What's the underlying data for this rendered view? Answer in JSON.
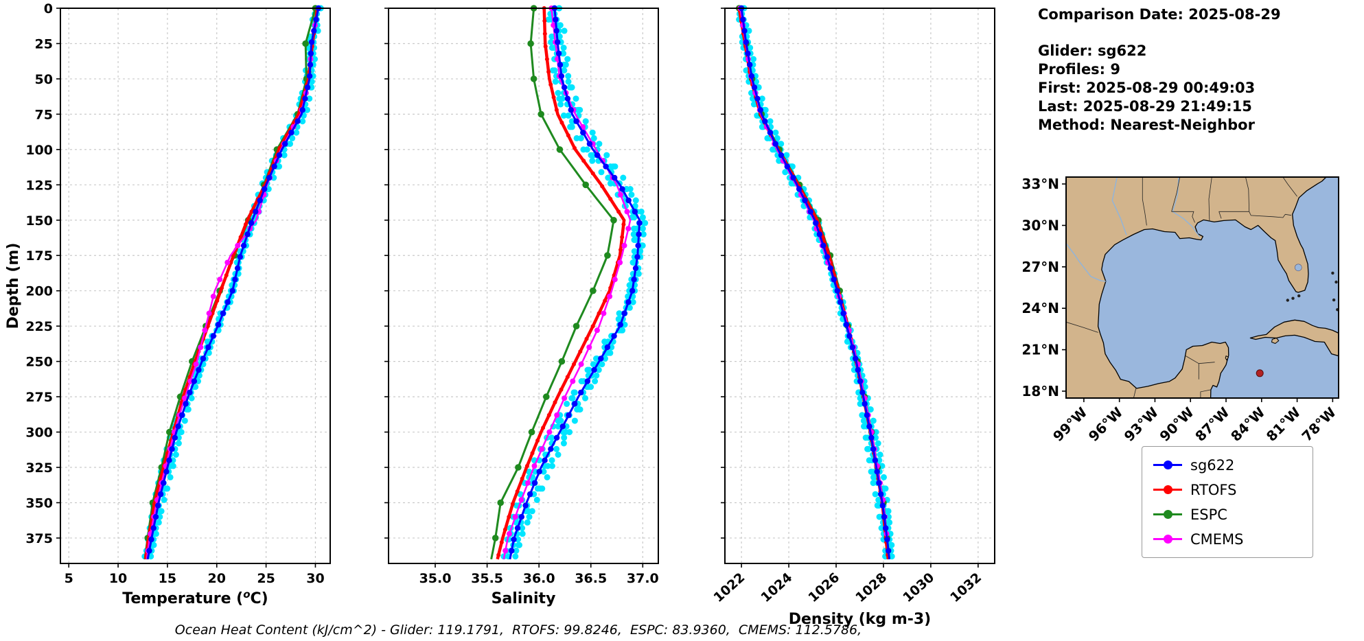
{
  "info_panel": {
    "comparison_date": "Comparison Date: 2025-08-29",
    "glider": "Glider: sg622",
    "profiles": "Profiles: 9",
    "first": "First: 2025-08-29 00:49:03",
    "last": "Last: 2025-08-29 21:49:15",
    "method": "Method: Nearest-Neighbor"
  },
  "footnote": "Ocean Heat Content (kJ/cm^2) - Glider: 119.1791,  RTOFS: 99.8246,  ESPC: 83.9360,  CMEMS: 112.5786,",
  "legend": {
    "entries": [
      {
        "label": "sg622",
        "color": "#0000ff"
      },
      {
        "label": "RTOFS",
        "color": "#ff0000"
      },
      {
        "label": "ESPC",
        "color": "#1f8a1f"
      },
      {
        "label": "CMEMS",
        "color": "#ff00ff"
      }
    ]
  },
  "map": {
    "lat_tick_labels": [
      "33°N",
      "30°N",
      "27°N",
      "24°N",
      "21°N",
      "18°N"
    ],
    "lat_tick_values": [
      33,
      30,
      27,
      24,
      21,
      18
    ],
    "lon_tick_labels": [
      "99°W",
      "96°W",
      "93°W",
      "90°W",
      "87°W",
      "84°W",
      "81°W",
      "78°W"
    ],
    "lon_tick_values": [
      -99,
      -96,
      -93,
      -90,
      -87,
      -84,
      -81,
      -78
    ],
    "extent": {
      "lon_min": -100.5,
      "lon_max": -77.5,
      "lat_min": 17.5,
      "lat_max": 33.5
    },
    "glider_marker": {
      "lon": -84.15,
      "lat": 19.3,
      "color": "#b22222"
    },
    "colors": {
      "land": "#d2b48c",
      "ocean": "#9ab7dd",
      "coast": "#000000"
    }
  },
  "chart_data": [
    {
      "type": "line",
      "name": "temperature",
      "xlabel": "Temperature (^oC)",
      "ylabel": "Depth (m)",
      "xlim": [
        4.15,
        31.5
      ],
      "ylim": [
        0,
        393
      ],
      "xticks": [
        5,
        10,
        15,
        20,
        25,
        30
      ],
      "xtick_labels": [
        "5",
        "10",
        "15",
        "20",
        "25",
        "30"
      ],
      "yticks": [
        0,
        25,
        50,
        75,
        100,
        125,
        150,
        175,
        200,
        225,
        250,
        275,
        300,
        325,
        350,
        375
      ],
      "depths": [
        0,
        25,
        50,
        75,
        100,
        125,
        150,
        175,
        200,
        225,
        250,
        275,
        300,
        325,
        350,
        375,
        390
      ],
      "series": [
        {
          "name": "sg622",
          "color": "#0000ff",
          "values": [
            30.3,
            29.6,
            29.4,
            28.6,
            26.6,
            25.0,
            23.6,
            22.4,
            21.6,
            20.1,
            18.5,
            17.1,
            15.9,
            15.0,
            14.1,
            13.4,
            13.0
          ]
        },
        {
          "name": "RTOFS",
          "color": "#ff0000",
          "values": [
            30.2,
            29.7,
            29.3,
            28.3,
            26.3,
            24.9,
            23.1,
            21.7,
            20.4,
            19.1,
            17.8,
            16.6,
            15.6,
            14.6,
            13.7,
            13.1,
            12.8
          ]
        },
        {
          "name": "ESPC",
          "color": "#1f8a1f",
          "values": [
            30.0,
            29.0,
            29.1,
            28.2,
            26.1,
            24.8,
            23.2,
            21.8,
            20.3,
            18.9,
            17.5,
            16.3,
            15.2,
            14.4,
            13.5,
            13.0,
            12.7
          ]
        },
        {
          "name": "CMEMS",
          "color": "#ff00ff",
          "values": [
            30.3,
            29.6,
            29.4,
            28.5,
            26.5,
            25.1,
            24.0,
            21.4,
            19.8,
            18.9,
            18.0,
            16.8,
            15.7,
            14.8,
            13.9,
            13.2,
            12.9
          ]
        }
      ],
      "glider_scatter": {
        "color": "#00e5ff",
        "spread": 0.55
      }
    },
    {
      "type": "line",
      "name": "salinity",
      "xlabel": "Salinity",
      "xlim": [
        34.55,
        37.15
      ],
      "ylim": [
        0,
        393
      ],
      "xticks": [
        35.0,
        35.5,
        36.0,
        36.5,
        37.0
      ],
      "xtick_labels": [
        "35.0",
        "35.5",
        "36.0",
        "36.5",
        "37.0"
      ],
      "yticks": [
        0,
        25,
        50,
        75,
        100,
        125,
        150,
        175,
        200,
        225,
        250,
        275,
        300,
        325,
        350,
        375
      ],
      "depths": [
        0,
        25,
        50,
        75,
        100,
        125,
        150,
        175,
        200,
        225,
        250,
        275,
        300,
        325,
        350,
        375,
        390
      ],
      "series": [
        {
          "name": "sg622",
          "color": "#0000ff",
          "values": [
            36.15,
            36.18,
            36.22,
            36.32,
            36.52,
            36.78,
            36.97,
            36.95,
            36.9,
            36.78,
            36.58,
            36.38,
            36.2,
            36.02,
            35.88,
            35.76,
            35.72
          ]
        },
        {
          "name": "RTOFS",
          "color": "#ff0000",
          "values": [
            36.05,
            36.06,
            36.1,
            36.18,
            36.35,
            36.6,
            36.82,
            36.78,
            36.68,
            36.52,
            36.35,
            36.18,
            36.02,
            35.88,
            35.75,
            35.65,
            35.6
          ]
        },
        {
          "name": "ESPC",
          "color": "#1f8a1f",
          "values": [
            35.95,
            35.92,
            35.95,
            36.02,
            36.2,
            36.45,
            36.72,
            36.66,
            36.52,
            36.36,
            36.22,
            36.07,
            35.93,
            35.8,
            35.63,
            35.58,
            35.54
          ]
        },
        {
          "name": "CMEMS",
          "color": "#ff00ff",
          "values": [
            36.12,
            36.16,
            36.2,
            36.35,
            36.55,
            36.75,
            36.88,
            36.8,
            36.7,
            36.58,
            36.42,
            36.25,
            36.1,
            35.95,
            35.82,
            35.7,
            35.66
          ]
        }
      ],
      "glider_scatter": {
        "color": "#00e5ff",
        "spread": 0.1
      }
    },
    {
      "type": "line",
      "name": "density",
      "xlabel": "Density (kg m-3)",
      "xlim": [
        1021.3,
        1032.7
      ],
      "ylim": [
        0,
        393
      ],
      "xticks": [
        1022,
        1024,
        1026,
        1028,
        1030,
        1032
      ],
      "xtick_labels": [
        "1022",
        "1024",
        "1026",
        "1028",
        "1030",
        "1032"
      ],
      "rotate_xticks": true,
      "yticks": [
        0,
        25,
        50,
        75,
        100,
        125,
        150,
        175,
        200,
        225,
        250,
        275,
        300,
        325,
        350,
        375
      ],
      "depths": [
        0,
        25,
        50,
        75,
        100,
        125,
        150,
        175,
        200,
        225,
        250,
        275,
        300,
        325,
        350,
        375,
        390
      ],
      "series": [
        {
          "name": "sg622",
          "color": "#0000ff",
          "values": [
            1022.0,
            1022.2,
            1022.45,
            1022.85,
            1023.55,
            1024.35,
            1025.1,
            1025.6,
            1026.05,
            1026.45,
            1026.85,
            1027.15,
            1027.45,
            1027.7,
            1027.95,
            1028.15,
            1028.25
          ]
        },
        {
          "name": "RTOFS",
          "color": "#ff0000",
          "values": [
            1021.9,
            1022.15,
            1022.4,
            1022.8,
            1023.55,
            1024.4,
            1025.2,
            1025.7,
            1026.1,
            1026.5,
            1026.85,
            1027.15,
            1027.45,
            1027.7,
            1027.95,
            1028.1,
            1028.2
          ]
        },
        {
          "name": "ESPC",
          "color": "#1f8a1f",
          "values": [
            1021.9,
            1022.2,
            1022.45,
            1022.85,
            1023.6,
            1024.45,
            1025.25,
            1025.75,
            1026.15,
            1026.5,
            1026.9,
            1027.2,
            1027.5,
            1027.75,
            1028.0,
            1028.15,
            1028.25
          ]
        },
        {
          "name": "CMEMS",
          "color": "#ff00ff",
          "values": [
            1021.95,
            1022.18,
            1022.42,
            1022.82,
            1023.5,
            1024.3,
            1025.05,
            1025.55,
            1026.05,
            1026.5,
            1026.9,
            1027.2,
            1027.5,
            1027.75,
            1028.0,
            1028.15,
            1028.25
          ]
        }
      ],
      "glider_scatter": {
        "color": "#00e5ff",
        "spread": 0.25
      }
    }
  ]
}
